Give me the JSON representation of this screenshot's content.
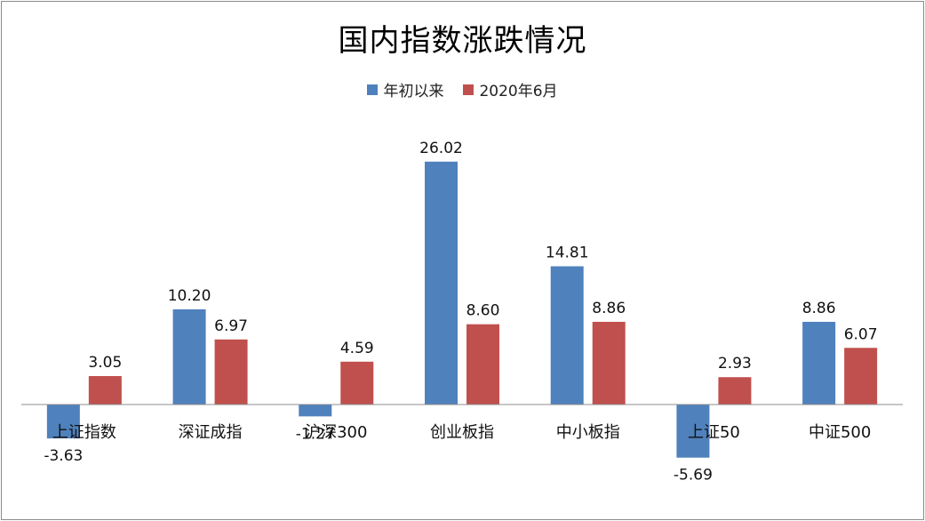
{
  "chart_data": {
    "type": "bar",
    "title": "国内指数涨跌情况",
    "categories": [
      "上证指数",
      "深证成指",
      "沪深300",
      "创业板指",
      "中小板指",
      "上证50",
      "中证500"
    ],
    "series": [
      {
        "name": "年初以来",
        "color": "#4f81bd",
        "values": [
          -3.63,
          10.2,
          -1.27,
          26.02,
          14.81,
          -5.69,
          8.86
        ]
      },
      {
        "name": "2020年6月",
        "color": "#c0504d",
        "values": [
          3.05,
          6.97,
          4.59,
          8.6,
          8.86,
          2.93,
          6.07
        ]
      }
    ],
    "value_labels": [
      [
        "-3.63",
        "10.20",
        "-1.27",
        "26.02",
        "14.81",
        "-5.69",
        "8.86"
      ],
      [
        "3.05",
        "6.97",
        "4.59",
        "8.60",
        "8.86",
        "2.93",
        "6.07"
      ]
    ],
    "legend_position": "top-center",
    "grid": false
  }
}
